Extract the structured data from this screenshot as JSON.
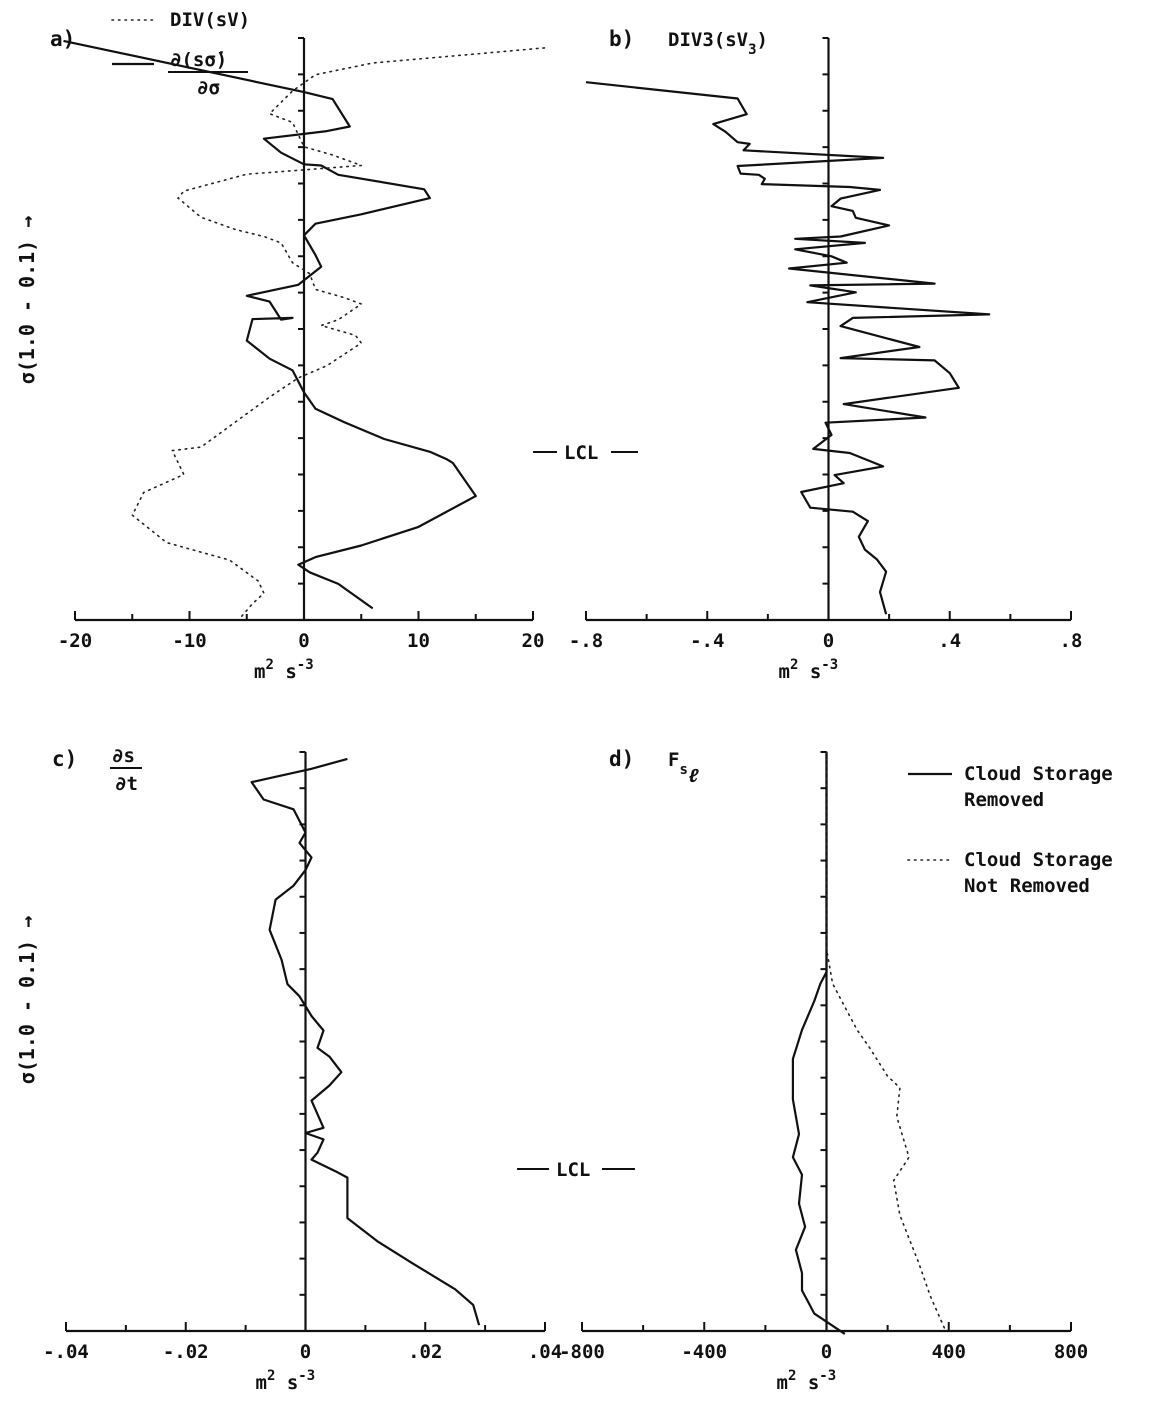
{
  "ylabel": "σ(1.0 - 0.1) →",
  "lcl_label": "LCL",
  "chart_data": [
    {
      "id": "a",
      "panel_label": "a)",
      "type": "line",
      "xlim": [
        -20,
        20
      ],
      "ylim": [
        0,
        1
      ],
      "xticks": [
        "-20",
        "-10",
        "0",
        "10",
        "20"
      ],
      "xtick_values": [
        -20,
        -10,
        0,
        10,
        20
      ],
      "minor_x": [
        -15,
        -5,
        5,
        15
      ],
      "xunit": "m",
      "xunit_sup1": "2",
      "xunit_mid": " s",
      "xunit_sup2": "-3",
      "legend": [
        {
          "style": "dashed",
          "text": "DIV(sV)"
        },
        {
          "style": "solid",
          "numerator": "∂(sσ̇)",
          "denominator": "∂σ"
        }
      ],
      "series": [
        {
          "style": "solid",
          "x": [
            -21,
            0,
            2.5,
            4,
            2,
            -3.5,
            -2,
            0,
            1.5,
            3,
            10.5,
            11,
            5,
            1,
            0,
            1,
            1.5,
            -0.5,
            -5,
            -3,
            -2,
            -1,
            -4.5,
            -5,
            -3,
            -1,
            0,
            1,
            3.5,
            7,
            11,
            12.5,
            13,
            15,
            10,
            5,
            1,
            -0.5,
            0.5,
            3,
            6
          ],
          "y": [
            0.995,
            0.907,
            0.895,
            0.848,
            0.84,
            0.827,
            0.803,
            0.783,
            0.781,
            0.765,
            0.74,
            0.725,
            0.697,
            0.681,
            0.661,
            0.627,
            0.607,
            0.576,
            0.557,
            0.547,
            0.516,
            0.519,
            0.517,
            0.48,
            0.449,
            0.429,
            0.391,
            0.363,
            0.34,
            0.311,
            0.289,
            0.276,
            0.27,
            0.213,
            0.16,
            0.128,
            0.108,
            0.095,
            0.082,
            0.062,
            0.02
          ]
        },
        {
          "style": "dashed",
          "x": [
            21,
            13,
            6,
            1,
            -1,
            -3,
            -1,
            0,
            2.5,
            5,
            -5,
            -10.5,
            -11,
            -9,
            -6,
            -3.5,
            -2,
            -1,
            0.5,
            1,
            3.5,
            5,
            3,
            1.5,
            4.5,
            5,
            2,
            -0.5,
            -3,
            -9,
            -11.5,
            -10.5,
            -14,
            -15,
            -12,
            -6.5,
            -4,
            -3.5,
            -4.5,
            -5.5
          ],
          "y": [
            0.983,
            0.969,
            0.957,
            0.937,
            0.909,
            0.87,
            0.855,
            0.813,
            0.799,
            0.781,
            0.766,
            0.737,
            0.725,
            0.692,
            0.671,
            0.659,
            0.648,
            0.614,
            0.595,
            0.568,
            0.554,
            0.543,
            0.516,
            0.506,
            0.489,
            0.476,
            0.437,
            0.416,
            0.383,
            0.297,
            0.291,
            0.25,
            0.219,
            0.18,
            0.133,
            0.103,
            0.067,
            0.046,
            0.028,
            0.005
          ]
        }
      ]
    },
    {
      "id": "b",
      "panel_label": "b)",
      "type": "line",
      "xlim": [
        -0.8,
        0.8
      ],
      "ylim": [
        0,
        1
      ],
      "xticks": [
        "-.8",
        "-.4",
        "0",
        ".4",
        ".8"
      ],
      "xtick_values": [
        -0.8,
        -0.4,
        0,
        0.4,
        0.8
      ],
      "minor_x": [
        -0.6,
        -0.2,
        0.2,
        0.6
      ],
      "xunit": "m",
      "xunit_sup1": "2",
      "xunit_mid": " s",
      "xunit_sup2": "-3",
      "legend": [
        {
          "style": "solid",
          "text": "DIV3(sV",
          "sub": "3",
          "tail": ")"
        }
      ],
      "series": [
        {
          "style": "solid",
          "x": [
            -0.8,
            -0.3,
            -0.27,
            -0.38,
            -0.34,
            -0.3,
            -0.26,
            -0.28,
            0.18,
            -0.3,
            -0.29,
            -0.23,
            -0.21,
            -0.22,
            0.07,
            0.17,
            0.04,
            0.01,
            0.08,
            0.09,
            0.2,
            0.04,
            -0.11,
            0.12,
            -0.11,
            0.01,
            0.06,
            -0.13,
            0.35,
            -0.06,
            0.09,
            -0.07,
            0.53,
            0.08,
            0.04,
            0.3,
            0.04,
            0.35,
            0.4,
            0.43,
            0.05,
            0.32,
            -0.01,
            0.01,
            -0.05,
            0.07,
            0.18,
            0.02,
            0.05,
            -0.09,
            -0.06,
            0.08,
            0.13,
            0.1,
            0.12,
            0.16,
            0.19,
            0.17,
            0.19
          ],
          "y": [
            0.924,
            0.896,
            0.869,
            0.852,
            0.839,
            0.821,
            0.818,
            0.807,
            0.794,
            0.78,
            0.767,
            0.765,
            0.758,
            0.749,
            0.744,
            0.739,
            0.724,
            0.711,
            0.703,
            0.691,
            0.678,
            0.659,
            0.655,
            0.648,
            0.637,
            0.625,
            0.614,
            0.604,
            0.578,
            0.575,
            0.563,
            0.546,
            0.525,
            0.519,
            0.505,
            0.469,
            0.45,
            0.446,
            0.424,
            0.399,
            0.371,
            0.348,
            0.339,
            0.318,
            0.294,
            0.287,
            0.264,
            0.249,
            0.235,
            0.22,
            0.193,
            0.186,
            0.17,
            0.143,
            0.121,
            0.104,
            0.083,
            0.048,
            0.01
          ]
        }
      ]
    },
    {
      "id": "c",
      "panel_label": "c)",
      "type": "line",
      "xlim": [
        -0.04,
        0.04
      ],
      "ylim": [
        0,
        1
      ],
      "xticks": [
        "-.04",
        "-.02",
        "0",
        ".02",
        ".04"
      ],
      "xtick_values": [
        -0.04,
        -0.02,
        0,
        0.02,
        0.04
      ],
      "minor_x": [
        -0.03,
        -0.01,
        0.01,
        0.03
      ],
      "xunit": "m",
      "xunit_sup1": "2",
      "xunit_mid": " s",
      "xunit_sup2": "-3",
      "legend": [
        {
          "style": "solid",
          "numerator": "∂s",
          "denominator": "∂t"
        }
      ],
      "series": [
        {
          "style": "solid",
          "x": [
            0.007,
            0.001,
            -0.009,
            -0.007,
            -0.002,
            0.0,
            -0.001,
            0.001,
            0.0,
            -0.002,
            -0.005,
            -0.006,
            -0.004,
            -0.003,
            -0.001,
            0.001,
            0.003,
            0.002,
            0.004,
            0.006,
            0.004,
            0.001,
            0.003,
            0.0,
            0.003,
            0.002,
            0.001,
            0.005,
            0.007,
            0.007,
            0.012,
            0.018,
            0.025,
            0.028,
            0.029
          ],
          "y": [
            0.988,
            0.971,
            0.948,
            0.918,
            0.901,
            0.861,
            0.843,
            0.818,
            0.796,
            0.769,
            0.745,
            0.693,
            0.641,
            0.599,
            0.578,
            0.544,
            0.519,
            0.489,
            0.474,
            0.447,
            0.424,
            0.398,
            0.351,
            0.342,
            0.331,
            0.308,
            0.296,
            0.276,
            0.265,
            0.195,
            0.155,
            0.116,
            0.072,
            0.045,
            0.01
          ]
        }
      ]
    },
    {
      "id": "d",
      "panel_label": "d)",
      "type": "line",
      "xlim": [
        -800,
        800
      ],
      "ylim": [
        0,
        1
      ],
      "xticks": [
        "-800",
        "-400",
        "0",
        "400",
        "800"
      ],
      "xtick_values": [
        -800,
        -400,
        0,
        400,
        800
      ],
      "minor_x": [
        -600,
        -200,
        200,
        600
      ],
      "xunit": "m",
      "xunit_sup1": "2",
      "xunit_mid": " s",
      "xunit_sup2": "-3",
      "legend": [
        {
          "style": "solid",
          "text": "F",
          "sub": "s",
          "subsub": "ℓ"
        }
      ],
      "key": [
        {
          "style": "solid",
          "lines": [
            "Cloud Storage",
            "Removed"
          ]
        },
        {
          "style": "dashed",
          "lines": [
            "Cloud Storage",
            "Not Removed"
          ]
        }
      ],
      "series": [
        {
          "style": "solid",
          "x": [
            0,
            0,
            0,
            -20,
            -40,
            -80,
            -110,
            -110,
            -90,
            -110,
            -80,
            -90,
            -70,
            -100,
            -80,
            -80,
            -60,
            -40,
            60
          ],
          "y": [
            1.0,
            0.66,
            0.62,
            0.6,
            0.57,
            0.52,
            0.47,
            0.4,
            0.34,
            0.3,
            0.27,
            0.22,
            0.18,
            0.14,
            0.1,
            0.07,
            0.05,
            0.03,
            -0.005
          ]
        },
        {
          "style": "dashed",
          "x": [
            0,
            0,
            20,
            60,
            100,
            140,
            200,
            240,
            230,
            270,
            220,
            240,
            270,
            300,
            340,
            390
          ],
          "y": [
            1.0,
            0.66,
            0.6,
            0.56,
            0.52,
            0.49,
            0.44,
            0.42,
            0.37,
            0.3,
            0.26,
            0.2,
            0.16,
            0.12,
            0.06,
            0.0
          ]
        }
      ]
    }
  ]
}
